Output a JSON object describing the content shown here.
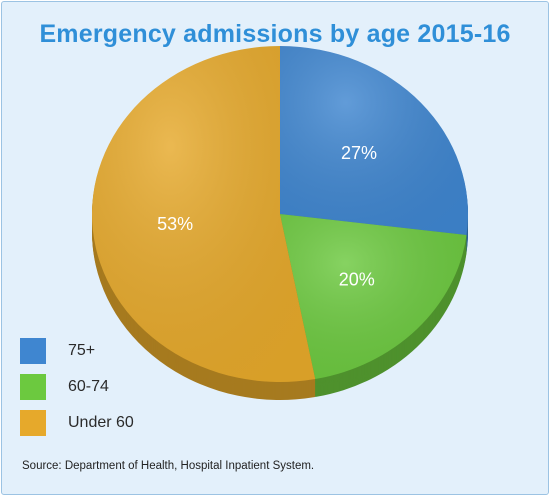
{
  "chart_data": {
    "type": "pie",
    "title": "Emergency admissions by age 2015-16",
    "slices": [
      {
        "label": "75+",
        "value": 27,
        "value_label": "27%",
        "color": "#3f86d0"
      },
      {
        "label": "60-74",
        "value": 20,
        "value_label": "20%",
        "color": "#6cc93f"
      },
      {
        "label": "Under 60",
        "value": 53,
        "value_label": "53%",
        "color": "#e6a92b"
      }
    ],
    "legend_position": "bottom-left",
    "start_angle": "top, clockwise",
    "source": "Source: Department of Health, Hospital Inpatient System."
  }
}
